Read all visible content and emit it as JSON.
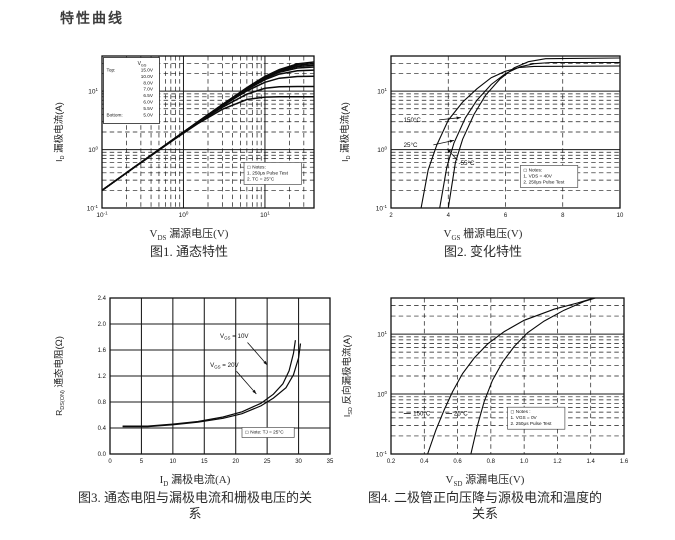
{
  "page_title": "特性曲线",
  "chart_data": [
    {
      "type": "line",
      "title": "图1. 通态特性",
      "caption": "图1. 通态特性",
      "xlabel": {
        "sym": "V",
        "sub": "DS",
        "text": "漏源电压(V)"
      },
      "ylabel": {
        "sym": "I",
        "sub": "D",
        "text": "漏极电流(A)"
      },
      "xscale": "log",
      "yscale": "log",
      "xrange": [
        0.1,
        40
      ],
      "yrange": [
        0.1,
        40
      ],
      "xticks": [
        {
          "exp": -1
        },
        {
          "exp": 0
        },
        {
          "exp": 1
        }
      ],
      "yticks": [
        {
          "exp": 1
        },
        {
          "exp": 0
        },
        {
          "exp": -1
        }
      ],
      "grid": "log-dashed",
      "legend": {
        "sym": "V",
        "sub": "GS",
        "rows": [
          [
            "Top:",
            "15.0V"
          ],
          [
            "",
            "10.0V"
          ],
          [
            "",
            "8.0V"
          ],
          [
            "",
            "7.0V"
          ],
          [
            "",
            "6.5V"
          ],
          [
            "",
            "6.0V"
          ],
          [
            "",
            "5.5V"
          ],
          [
            "Bottom:",
            "5.0V"
          ]
        ]
      },
      "notes": {
        "fx": 0.67,
        "fy": 0.7,
        "lines": [
          "◻ Notes:",
          "1. 250μs Pulse Test",
          "2. TC = 25°C"
        ]
      },
      "series": [
        {
          "name": "VGS = 15.0V",
          "points": [
            [
              0.1,
              0.2
            ],
            [
              0.2,
              0.4
            ],
            [
              0.4,
              0.8
            ],
            [
              0.8,
              1.6
            ],
            [
              1.5,
              2.99
            ],
            [
              3,
              5.9
            ],
            [
              6,
              11.5
            ],
            [
              10,
              17.9
            ],
            [
              15,
              23.4
            ],
            [
              25,
              29.3
            ],
            [
              40,
              31.6
            ]
          ]
        },
        {
          "name": "VGS = 10.0V",
          "points": [
            [
              0.1,
              0.2
            ],
            [
              0.2,
              0.4
            ],
            [
              0.4,
              0.8
            ],
            [
              0.8,
              1.6
            ],
            [
              1.5,
              2.98
            ],
            [
              3,
              5.9
            ],
            [
              6,
              11.3
            ],
            [
              10,
              17.5
            ],
            [
              15,
              22.8
            ],
            [
              25,
              27.9
            ],
            [
              40,
              29.7
            ]
          ]
        },
        {
          "name": "VGS = 8.0V",
          "points": [
            [
              0.1,
              0.2
            ],
            [
              0.2,
              0.4
            ],
            [
              0.4,
              0.8
            ],
            [
              0.8,
              1.6
            ],
            [
              1.5,
              2.98
            ],
            [
              3,
              5.85
            ],
            [
              6,
              11.2
            ],
            [
              10,
              17.1
            ],
            [
              15,
              21.9
            ],
            [
              25,
              26.4
            ],
            [
              40,
              27.8
            ]
          ]
        },
        {
          "name": "VGS = 7.0V",
          "points": [
            [
              0.1,
              0.2
            ],
            [
              0.2,
              0.4
            ],
            [
              0.4,
              0.8
            ],
            [
              0.8,
              1.6
            ],
            [
              1.5,
              2.97
            ],
            [
              3,
              5.8
            ],
            [
              6,
              11.0
            ],
            [
              10,
              16.5
            ],
            [
              15,
              21.0
            ],
            [
              25,
              24.9
            ],
            [
              40,
              25.9
            ]
          ]
        },
        {
          "name": "VGS = 6.5V",
          "points": [
            [
              0.1,
              0.2
            ],
            [
              0.2,
              0.4
            ],
            [
              0.4,
              0.8
            ],
            [
              0.8,
              1.59
            ],
            [
              1.5,
              2.96
            ],
            [
              3,
              5.75
            ],
            [
              6,
              10.7
            ],
            [
              10,
              15.7
            ],
            [
              15,
              19.6
            ],
            [
              25,
              22.3
            ],
            [
              40,
              22.9
            ]
          ]
        },
        {
          "name": "VGS = 6.0V",
          "points": [
            [
              0.1,
              0.2
            ],
            [
              0.2,
              0.4
            ],
            [
              0.4,
              0.8
            ],
            [
              0.8,
              1.58
            ],
            [
              1.5,
              2.93
            ],
            [
              3,
              5.6
            ],
            [
              6,
              10.1
            ],
            [
              10,
              14.2
            ],
            [
              15,
              16.7
            ],
            [
              25,
              17.8
            ],
            [
              40,
              18.0
            ]
          ]
        },
        {
          "name": "VGS = 5.5V",
          "points": [
            [
              0.1,
              0.2
            ],
            [
              0.2,
              0.4
            ],
            [
              0.4,
              0.79
            ],
            [
              0.8,
              1.57
            ],
            [
              1.5,
              2.87
            ],
            [
              3,
              5.3
            ],
            [
              6,
              8.9
            ],
            [
              10,
              11.2
            ],
            [
              15,
              11.9
            ],
            [
              25,
              12.0
            ],
            [
              40,
              12.0
            ]
          ]
        },
        {
          "name": "VGS = 5.0V",
          "points": [
            [
              0.1,
              0.2
            ],
            [
              0.2,
              0.4
            ],
            [
              0.4,
              0.79
            ],
            [
              0.8,
              1.55
            ],
            [
              1.5,
              2.78
            ],
            [
              3,
              4.9
            ],
            [
              6,
              7.2
            ],
            [
              10,
              7.9
            ],
            [
              15,
              8.0
            ],
            [
              25,
              8.0
            ],
            [
              40,
              8.0
            ]
          ]
        }
      ]
    },
    {
      "type": "line",
      "title": "图2. 变化特性",
      "caption": "图2. 变化特性",
      "xlabel": {
        "sym": "V",
        "sub": "GS",
        "text": "栅源电压(V)"
      },
      "ylabel": {
        "sym": "I",
        "sub": "D",
        "text": "漏极电流(A)"
      },
      "xscale": "linear",
      "yscale": "log",
      "xrange": [
        2,
        10
      ],
      "yrange": [
        0.1,
        40
      ],
      "xticks": [
        {
          "v": 2,
          "t": "2"
        },
        {
          "v": 4,
          "t": "4"
        },
        {
          "v": 6,
          "t": "6"
        },
        {
          "v": 8,
          "t": "8"
        },
        {
          "v": 10,
          "t": "10"
        }
      ],
      "yticks": [
        {
          "exp": 1
        },
        {
          "exp": 0
        },
        {
          "exp": -1
        }
      ],
      "grid": "log-dashed",
      "notes": {
        "fx": 0.565,
        "fy": 0.72,
        "lines": [
          "◻ Notes:",
          "1. VDS = 40V",
          "2. 250μs Pulse Test"
        ]
      },
      "labels": [
        {
          "text": "150°C",
          "fx": 0.055,
          "fy": 0.42,
          "leader": [
            0.21,
            0.42,
            0.305,
            0.405
          ],
          "arrow": true
        },
        {
          "text": "25°C",
          "fx": 0.055,
          "fy": 0.585,
          "leader": [
            0.185,
            0.585,
            0.275,
            0.555
          ],
          "arrow": true
        },
        {
          "text": "-55°C",
          "fx": 0.295,
          "fy": 0.705,
          "leader": [
            0.29,
            0.685,
            0.245,
            0.61
          ],
          "arrow": true
        }
      ],
      "series": [
        {
          "name": "150°C",
          "points": [
            [
              3.05,
              0.1
            ],
            [
              3.3,
              0.45
            ],
            [
              3.6,
              1.2
            ],
            [
              4.0,
              3.2
            ],
            [
              4.5,
              6.5
            ],
            [
              5.0,
              11
            ],
            [
              5.5,
              17
            ],
            [
              6.0,
              22
            ],
            [
              6.5,
              25.5
            ],
            [
              7.0,
              26.5
            ],
            [
              10,
              27
            ]
          ]
        },
        {
          "name": "25°C",
          "points": [
            [
              3.7,
              0.1
            ],
            [
              3.95,
              0.5
            ],
            [
              4.2,
              1.3
            ],
            [
              4.6,
              3.5
            ],
            [
              5.0,
              7
            ],
            [
              5.5,
              13
            ],
            [
              6.0,
              20
            ],
            [
              6.5,
              26
            ],
            [
              7.0,
              29.5
            ],
            [
              7.6,
              31
            ],
            [
              10,
              31
            ]
          ]
        },
        {
          "name": "-55°C",
          "points": [
            [
              4.0,
              0.1
            ],
            [
              4.25,
              0.6
            ],
            [
              4.5,
              1.5
            ],
            [
              4.9,
              4
            ],
            [
              5.3,
              8.5
            ],
            [
              5.8,
              16
            ],
            [
              6.3,
              25
            ],
            [
              6.8,
              32
            ],
            [
              7.4,
              36
            ],
            [
              10,
              37
            ]
          ]
        }
      ]
    },
    {
      "type": "line",
      "title": "图3. 通态电阻与漏极电流和栅极电压的关系",
      "caption": "图3. 通态电阻与漏极电流和栅极电压的关系",
      "xlabel": {
        "sym": "I",
        "sub": "D",
        "text": "漏极电流(A)"
      },
      "ylabel": {
        "sym": "R",
        "sub": "DS(ON)",
        "text": "通态电阻(Ω)"
      },
      "xscale": "linear",
      "yscale": "linear",
      "xrange": [
        0,
        35
      ],
      "yrange": [
        0,
        2.4
      ],
      "xticks": [
        {
          "v": 0,
          "t": "0"
        },
        {
          "v": 5,
          "t": "5"
        },
        {
          "v": 10,
          "t": "10"
        },
        {
          "v": 15,
          "t": "15"
        },
        {
          "v": 20,
          "t": "20"
        },
        {
          "v": 25,
          "t": "25"
        },
        {
          "v": 30,
          "t": "30"
        },
        {
          "v": 35,
          "t": "35"
        }
      ],
      "yticks": [
        {
          "v": 0,
          "t": "0.0"
        },
        {
          "v": 0.4,
          "t": "0.4"
        },
        {
          "v": 0.8,
          "t": "0.8"
        },
        {
          "v": 1.2,
          "t": "1.2"
        },
        {
          "v": 1.6,
          "t": "1.6"
        },
        {
          "v": 2.0,
          "t": "2.0"
        },
        {
          "v": 2.4,
          "t": "2.4"
        }
      ],
      "grid": "solid",
      "notes": {
        "fx": 0.6,
        "fy": 0.83,
        "lines": [
          "◻ Note: TJ = 25°C"
        ]
      },
      "labels": [
        {
          "sym": "V",
          "sub": "GS",
          "rest": " = 10V",
          "fx": 0.5,
          "fy": 0.245,
          "leader": [
            0.625,
            0.285,
            0.715,
            0.43
          ],
          "arrow": true
        },
        {
          "sym": "V",
          "sub": "GS",
          "rest": " = 20V",
          "fx": 0.455,
          "fy": 0.43,
          "leader": [
            0.575,
            0.47,
            0.665,
            0.615
          ],
          "arrow": true
        }
      ],
      "series": [
        {
          "name": "VGS = 10V",
          "points": [
            [
              2,
              0.43
            ],
            [
              6,
              0.43
            ],
            [
              10,
              0.46
            ],
            [
              14,
              0.5
            ],
            [
              18,
              0.57
            ],
            [
              21,
              0.65
            ],
            [
              24,
              0.78
            ],
            [
              26,
              0.92
            ],
            [
              27.5,
              1.08
            ],
            [
              28.5,
              1.28
            ],
            [
              29.2,
              1.55
            ],
            [
              29.5,
              1.75
            ]
          ]
        },
        {
          "name": "VGS = 20V",
          "points": [
            [
              2,
              0.42
            ],
            [
              6,
              0.42
            ],
            [
              10,
              0.45
            ],
            [
              14,
              0.49
            ],
            [
              18,
              0.55
            ],
            [
              21,
              0.62
            ],
            [
              24,
              0.74
            ],
            [
              26,
              0.86
            ],
            [
              28,
              1.02
            ],
            [
              29.2,
              1.22
            ],
            [
              30,
              1.48
            ],
            [
              30.3,
              1.7
            ]
          ]
        }
      ]
    },
    {
      "type": "line",
      "title": "图4. 二极管正向压降与源极电流和温度的关系",
      "caption": "图4. 二极管正向压降与源极电流和温度的关系",
      "xlabel": {
        "sym": "V",
        "sub": "SD",
        "text": "源漏电压(V)"
      },
      "ylabel": {
        "sym": "I",
        "sub": "SD",
        "text": "反向漏极电流(A)"
      },
      "xscale": "linear",
      "yscale": "log",
      "xrange": [
        0.2,
        1.6
      ],
      "yrange": [
        0.1,
        40
      ],
      "xticks": [
        {
          "v": 0.2,
          "t": "0.2"
        },
        {
          "v": 0.4,
          "t": "0.4"
        },
        {
          "v": 0.6,
          "t": "0.6"
        },
        {
          "v": 0.8,
          "t": "0.8"
        },
        {
          "v": 1.0,
          "t": "1.0"
        },
        {
          "v": 1.2,
          "t": "1.2"
        },
        {
          "v": 1.4,
          "t": "1.4"
        },
        {
          "v": 1.6,
          "t": "1.6"
        }
      ],
      "yticks": [
        {
          "exp": 1
        },
        {
          "exp": 0
        },
        {
          "exp": -1
        }
      ],
      "grid": "log-dashed",
      "notes": {
        "fx": 0.5,
        "fy": 0.7,
        "lines": [
          "◻ Notes :",
          "1. VGS = 0V",
          "2. 250μs Pulse Test"
        ]
      },
      "labels": [
        {
          "text": "150°C",
          "fx": 0.095,
          "fy": 0.74,
          "leader": [
            0.055,
            0.74,
            0.085,
            0.74
          ],
          "arrow": false
        },
        {
          "text": "25°C",
          "fx": 0.27,
          "fy": 0.74,
          "leader": [
            0.235,
            0.74,
            0.262,
            0.74
          ],
          "arrow": false
        }
      ],
      "series": [
        {
          "name": "150°C",
          "points": [
            [
              0.42,
              0.1
            ],
            [
              0.47,
              0.25
            ],
            [
              0.52,
              0.55
            ],
            [
              0.57,
              1.1
            ],
            [
              0.63,
              2.2
            ],
            [
              0.7,
              4.0
            ],
            [
              0.78,
              6.8
            ],
            [
              0.88,
              11
            ],
            [
              1.0,
              17
            ],
            [
              1.18,
              26
            ],
            [
              1.32,
              33
            ],
            [
              1.42,
              40
            ]
          ]
        },
        {
          "name": "25°C",
          "points": [
            [
              0.68,
              0.1
            ],
            [
              0.72,
              0.3
            ],
            [
              0.76,
              0.75
            ],
            [
              0.81,
              1.7
            ],
            [
              0.87,
              3.4
            ],
            [
              0.94,
              6.2
            ],
            [
              1.02,
              10.5
            ],
            [
              1.12,
              16.5
            ],
            [
              1.24,
              25
            ],
            [
              1.36,
              35
            ],
            [
              1.44,
              41
            ]
          ]
        }
      ]
    }
  ]
}
